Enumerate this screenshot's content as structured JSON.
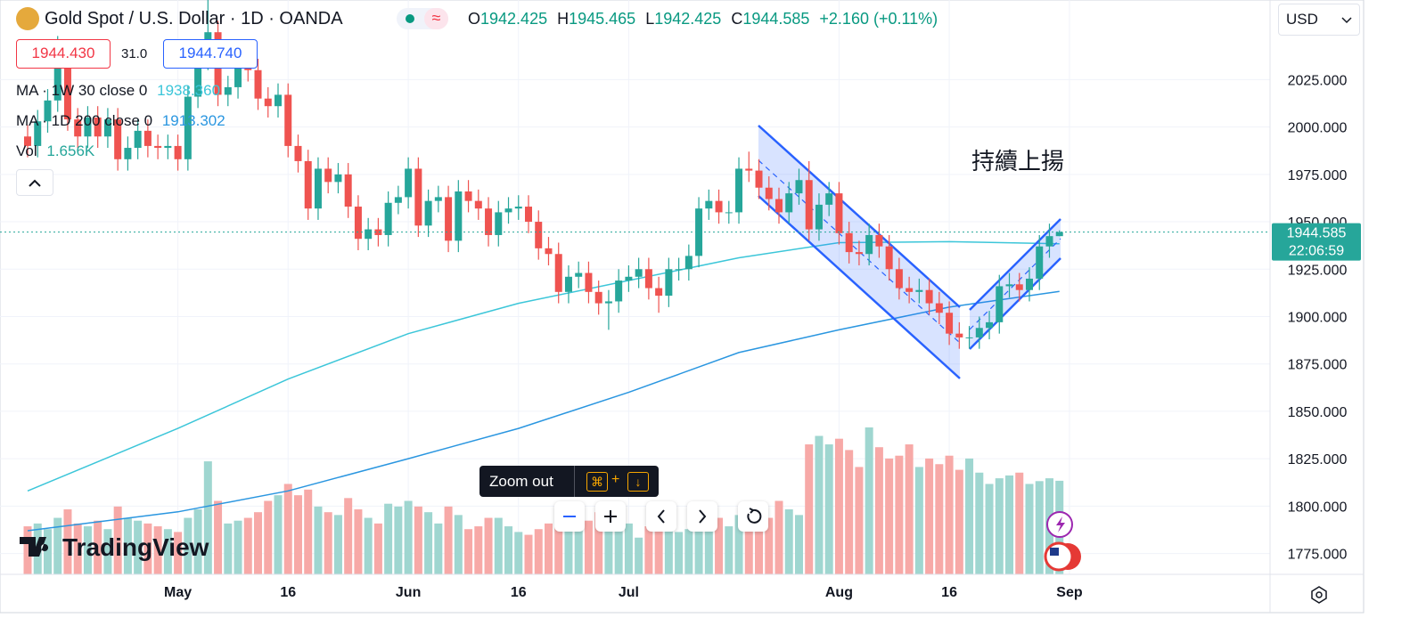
{
  "header": {
    "symbol": "Gold Spot / U.S. Dollar · 1D · OANDA",
    "o": "O",
    "h": "H",
    "l": "L",
    "c": "C",
    "change": "+2.160 (+0.11%)",
    "currency": "USD"
  },
  "trade": {
    "sell": "1944.430",
    "spread": "31.0",
    "buy": "1944.740"
  },
  "tooltip": {
    "text": "Zoom out",
    "keys": [
      "⌘",
      "+",
      "↓"
    ]
  },
  "watermark": "TradingView",
  "countdown": "22:06:59",
  "chart_data": {
    "type": "candlestick",
    "annotation": "持續上揚",
    "categories": [
      null,
      null,
      null,
      null,
      null,
      null,
      null,
      null,
      null,
      null,
      null,
      null,
      null,
      null,
      null,
      "May",
      null,
      null,
      null,
      null,
      null,
      null,
      null,
      null,
      null,
      null,
      "16",
      null,
      null,
      null,
      null,
      null,
      null,
      null,
      null,
      null,
      null,
      null,
      "Jun",
      null,
      null,
      null,
      null,
      null,
      null,
      null,
      null,
      null,
      null,
      "16",
      null,
      null,
      null,
      null,
      null,
      null,
      null,
      null,
      null,
      null,
      "Jul",
      null,
      null,
      null,
      null,
      null,
      null,
      null,
      null,
      null,
      null,
      null,
      null,
      null,
      null,
      null,
      null,
      null,
      null,
      null,
      null,
      "Aug",
      null,
      null,
      null,
      null,
      null,
      null,
      null,
      null,
      null,
      null,
      "16",
      null,
      null,
      null,
      null,
      null,
      null,
      null,
      null,
      null,
      null,
      null,
      "Sep"
    ],
    "open": [
      1995,
      1990,
      2003,
      2014,
      2040,
      2004,
      1995,
      2005,
      1995,
      2004,
      1983,
      1989,
      1998,
      1990,
      1989,
      1990,
      1983,
      2016,
      2039,
      2050,
      2017,
      2021,
      2034,
      2030,
      2015,
      2011,
      2017,
      1990,
      1982,
      1957,
      1978,
      1971,
      1975,
      1958,
      1941,
      1946,
      1943,
      1960,
      1963,
      1978,
      1948,
      1961,
      1963,
      1940,
      1966,
      1961,
      1957,
      1943,
      1955,
      1957,
      1958,
      1950,
      1936,
      1933,
      1913,
      1921,
      1923,
      1913,
      1907,
      1908,
      1919,
      1921,
      1925,
      1915,
      1911,
      1925,
      1925,
      1932,
      1957,
      1961,
      1955,
      1955,
      1978,
      1977,
      1968,
      1962,
      1955,
      1965,
      1972,
      1946,
      1959,
      1965,
      1944,
      1934,
      1933,
      1943,
      1937,
      1925,
      1915,
      1913,
      1914,
      1907,
      1902,
      1891,
      1889,
      1889,
      1894,
      1897,
      1916,
      1917,
      1914,
      1920,
      1937,
      1942.425,
      null
    ],
    "high": [
      2001,
      2009,
      2020,
      2048,
      2046,
      2010,
      2011,
      2011,
      2010,
      2010,
      1995,
      2004,
      2004,
      1996,
      1996,
      1996,
      2022,
      2045,
      2072,
      2056,
      2027,
      2040,
      2040,
      2036,
      2021,
      2023,
      2023,
      1996,
      1988,
      1984,
      1984,
      1981,
      1981,
      1964,
      1952,
      1952,
      1966,
      1969,
      1984,
      1984,
      1967,
      1969,
      1969,
      1972,
      1972,
      1967,
      1963,
      1961,
      1963,
      1964,
      1964,
      1956,
      1942,
      1939,
      1927,
      1929,
      1929,
      1919,
      1914,
      1925,
      1927,
      1931,
      1931,
      1921,
      1931,
      1931,
      1938,
      1963,
      1967,
      1967,
      1961,
      1984,
      1987,
      1983,
      1974,
      1968,
      1971,
      1978,
      1982,
      1965,
      1971,
      1971,
      1950,
      1940,
      1949,
      1949,
      1943,
      1931,
      1921,
      1920,
      1920,
      1913,
      1908,
      1897,
      1895,
      1900,
      1903,
      1922,
      1923,
      1923,
      1926,
      1943,
      1949,
      1945.465,
      null
    ],
    "low": [
      1984,
      1984,
      1997,
      2008,
      1998,
      1989,
      1989,
      1989,
      1989,
      1977,
      1977,
      1983,
      1984,
      1983,
      1983,
      1977,
      1977,
      2010,
      2030,
      2011,
      2011,
      2015,
      2024,
      2009,
      2005,
      2005,
      1984,
      1976,
      1951,
      1951,
      1965,
      1965,
      1952,
      1935,
      1935,
      1937,
      1937,
      1954,
      1957,
      1942,
      1942,
      1955,
      1934,
      1934,
      1955,
      1951,
      1937,
      1937,
      1949,
      1951,
      1944,
      1930,
      1927,
      1907,
      1907,
      1915,
      1907,
      1901,
      1893,
      1902,
      1913,
      1915,
      1909,
      1902,
      1905,
      1919,
      1919,
      1926,
      1951,
      1949,
      1949,
      1949,
      1971,
      1962,
      1956,
      1949,
      1949,
      1959,
      1940,
      1940,
      1953,
      1938,
      1928,
      1927,
      1927,
      1931,
      1919,
      1909,
      1907,
      1907,
      1901,
      1896,
      1885,
      1883,
      1883,
      1883,
      1888,
      1891,
      1910,
      1908,
      1908,
      1914,
      1931,
      1942.425,
      null
    ],
    "close": [
      1990,
      2003,
      2014,
      2040,
      2004,
      1995,
      2005,
      1995,
      2004,
      1983,
      1989,
      1998,
      1990,
      1989,
      1990,
      1983,
      2016,
      2039,
      2050,
      2017,
      2021,
      2034,
      2030,
      2015,
      2011,
      2017,
      1990,
      1982,
      1957,
      1978,
      1971,
      1975,
      1958,
      1941,
      1946,
      1943,
      1960,
      1963,
      1978,
      1948,
      1961,
      1963,
      1940,
      1966,
      1961,
      1957,
      1943,
      1955,
      1957,
      1958,
      1950,
      1936,
      1933,
      1913,
      1921,
      1923,
      1913,
      1907,
      1908,
      1919,
      1921,
      1925,
      1915,
      1911,
      1925,
      1925,
      1932,
      1957,
      1961,
      1955,
      1955,
      1978,
      1977,
      1968,
      1962,
      1955,
      1965,
      1972,
      1946,
      1959,
      1965,
      1944,
      1934,
      1933,
      1943,
      1937,
      1925,
      1915,
      1913,
      1914,
      1907,
      1902,
      1891,
      1889,
      1889,
      1894,
      1897,
      1916,
      1917,
      1914,
      1920,
      1937,
      1942.425,
      1944.585,
      null
    ],
    "volume": {
      "name": "Vol",
      "last_label": "1.656K",
      "values": [
        0.85,
        0.9,
        0.8,
        1.0,
        1.15,
        0.9,
        0.85,
        0.95,
        0.8,
        1.2,
        1.0,
        0.95,
        0.9,
        0.85,
        0.8,
        0.75,
        1.0,
        1.15,
        2.0,
        1.3,
        0.9,
        0.95,
        1.0,
        1.1,
        1.3,
        1.4,
        1.6,
        1.4,
        1.5,
        1.2,
        1.1,
        1.05,
        1.35,
        1.15,
        1.0,
        0.9,
        1.25,
        1.2,
        1.3,
        1.2,
        1.1,
        0.9,
        1.2,
        1.05,
        0.8,
        0.85,
        1.0,
        1.0,
        0.85,
        0.75,
        0.7,
        0.8,
        0.9,
        1.05,
        1.2,
        1.0,
        0.95,
        1.1,
        1.2,
        1.0,
        0.9,
        0.65,
        0.85,
        1.0,
        0.9,
        0.75,
        0.8,
        1.0,
        1.1,
        1.0,
        0.85,
        1.05,
        1.2,
        1.1,
        1.0,
        1.3,
        1.15,
        1.05,
        2.3,
        2.45,
        2.3,
        2.4,
        2.2,
        1.9,
        2.6,
        2.25,
        2.05,
        2.1,
        2.3,
        1.9,
        2.05,
        1.95,
        2.1,
        1.85,
        2.05,
        1.8,
        1.6,
        1.7,
        1.75,
        1.8,
        1.6,
        1.65,
        1.7,
        1.656,
        null
      ]
    },
    "lines": [
      {
        "name": "MA · 1W 30 close 0",
        "last_label": "1938.360",
        "color": "#3cc6d9",
        "x": [
          0,
          15,
          26,
          38,
          49,
          60,
          71,
          81,
          92,
          103
        ],
        "values": [
          1808,
          1841,
          1867,
          1891,
          1907,
          1919,
          1931,
          1939,
          1939.5,
          1938.36
        ]
      },
      {
        "name": "MA · 1D 200 close 0",
        "last_label": "1913.302",
        "color": "#2a96e0",
        "x": [
          0,
          15,
          26,
          38,
          49,
          60,
          71,
          81,
          92,
          103
        ],
        "values": [
          1787,
          1797,
          1808,
          1825,
          1841,
          1860,
          1881,
          1893,
          1905,
          1913.302
        ]
      }
    ],
    "colors": {
      "up": "#26a69a",
      "down": "#ef5350",
      "up_volume": "#9fd6d0",
      "down_volume": "#f7a9a7"
    },
    "ylim": [
      1764,
      2067
    ],
    "yticks": [
      {
        "value": 1775,
        "label": "1775.000"
      },
      {
        "value": 1800,
        "label": "1800.000"
      },
      {
        "value": 1825,
        "label": "1825.000"
      },
      {
        "value": 1850,
        "label": "1850.000"
      },
      {
        "value": 1875,
        "label": "1875.000"
      },
      {
        "value": 1900,
        "label": "1900.000"
      },
      {
        "value": 1925,
        "label": "1925.000"
      },
      {
        "value": 1950,
        "label": "1950.000"
      },
      {
        "value": 1975,
        "label": "1975.000"
      },
      {
        "value": 2000,
        "label": "2000.000"
      },
      {
        "value": 2025,
        "label": "2025.000"
      }
    ],
    "grid": true
  }
}
